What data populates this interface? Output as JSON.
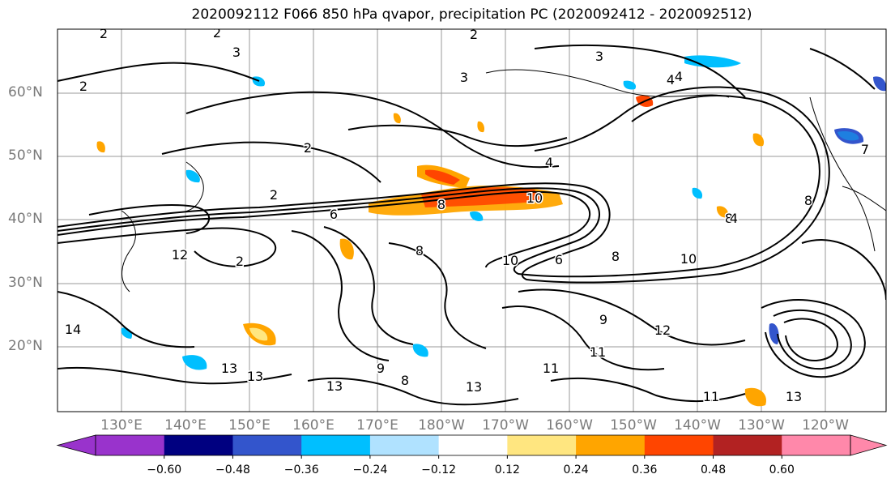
{
  "title": "2020092112 F066 850 hPa qvapor, precipitation PC (2020092412 - 2020092512)",
  "map": {
    "lat_labels": [
      "60°N",
      "50°N",
      "40°N",
      "30°N",
      "20°N"
    ],
    "lon_labels": [
      "130°E",
      "140°E",
      "150°E",
      "160°E",
      "170°E",
      "180°W",
      "170°W",
      "160°W",
      "150°W",
      "140°W",
      "130°W",
      "120°W"
    ],
    "contour_labels": [
      "2",
      "2",
      "3",
      "2",
      "2",
      "3",
      "3",
      "2",
      "2",
      "2",
      "4",
      "4",
      "8",
      "8",
      "8",
      "10",
      "10",
      "10",
      "6",
      "6",
      "8",
      "12",
      "14",
      "13",
      "13",
      "13",
      "13",
      "11",
      "11",
      "11",
      "9",
      "9",
      "12",
      "8",
      "8",
      "4",
      "4",
      "7",
      "13"
    ]
  },
  "colorbar": {
    "tick_labels": [
      "−0.60",
      "−0.48",
      "−0.36",
      "−0.24",
      "−0.12",
      "0.12",
      "0.24",
      "0.36",
      "0.48",
      "0.60"
    ],
    "colors": [
      "#9933cc",
      "#000080",
      "#3355cc",
      "#00bfff",
      "#b0e2ff",
      "#ffffff",
      "#ffe680",
      "#ffa500",
      "#ff4500",
      "#b22222",
      "#ff88aa",
      "#ff88aa"
    ]
  }
}
